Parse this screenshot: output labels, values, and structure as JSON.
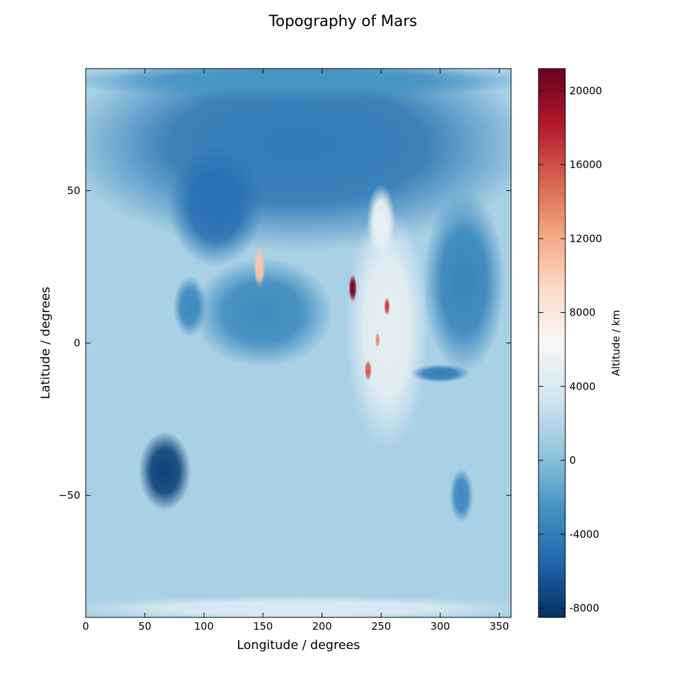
{
  "chart_data": {
    "type": "heatmap",
    "title": "Topography of Mars",
    "xlabel": "Longitude / degrees",
    "ylabel": "Latitude / degrees",
    "xlim": [
      0,
      360
    ],
    "ylim": [
      -90,
      90
    ],
    "x_ticks": [
      0,
      50,
      100,
      150,
      200,
      250,
      300,
      350
    ],
    "x_tick_labels": [
      "0",
      "50",
      "100",
      "150",
      "200",
      "250",
      "300",
      "350"
    ],
    "y_ticks": [
      -50,
      0,
      50
    ],
    "y_tick_labels": [
      "−50",
      "0",
      "50"
    ],
    "colormap": "RdBu_r",
    "colorbar": {
      "label": "Altitude / km",
      "vmin": -8500,
      "vmax": 21200,
      "ticks": [
        -8000,
        -4000,
        0,
        4000,
        8000,
        12000,
        16000,
        20000
      ],
      "tick_labels": [
        "-8000",
        "-4000",
        "0",
        "4000",
        "8000",
        "12000",
        "16000",
        "20000"
      ],
      "stops": [
        {
          "v": 0.0,
          "c": "#053061"
        },
        {
          "v": 0.1,
          "c": "#2166ac"
        },
        {
          "v": 0.2,
          "c": "#4393c3"
        },
        {
          "v": 0.3,
          "c": "#92c5de"
        },
        {
          "v": 0.4,
          "c": "#d1e5f0"
        },
        {
          "v": 0.5,
          "c": "#f7f7f7"
        },
        {
          "v": 0.6,
          "c": "#fddbc7"
        },
        {
          "v": 0.7,
          "c": "#f4a582"
        },
        {
          "v": 0.8,
          "c": "#d6604d"
        },
        {
          "v": 0.9,
          "c": "#b2182b"
        },
        {
          "v": 1.0,
          "c": "#67001f"
        }
      ]
    },
    "background_altitude": 1500,
    "features": [
      {
        "name": "northern-plains",
        "lon": 180,
        "lat": 65,
        "rlon": 200,
        "rlat": 35,
        "alt": -4200
      },
      {
        "name": "north-polar-cap",
        "lon": 180,
        "lat": 86,
        "rlon": 200,
        "rlat": 6,
        "alt": -2500
      },
      {
        "name": "utopia-basin",
        "lon": 110,
        "lat": 45,
        "rlon": 40,
        "rlat": 20,
        "alt": -4800
      },
      {
        "name": "elysium-plain",
        "lon": 150,
        "lat": 10,
        "rlon": 60,
        "rlat": 18,
        "alt": -3000
      },
      {
        "name": "isidis-basin",
        "lon": 88,
        "lat": 12,
        "rlon": 14,
        "rlat": 10,
        "alt": -3200
      },
      {
        "name": "chryse-plain",
        "lon": 320,
        "lat": 20,
        "rlon": 35,
        "rlat": 30,
        "alt": -3500
      },
      {
        "name": "tharsis-rise",
        "lon": 255,
        "lat": 5,
        "rlon": 35,
        "rlat": 40,
        "alt": 5000
      },
      {
        "name": "alba-patera",
        "lon": 250,
        "lat": 40,
        "rlon": 12,
        "rlat": 12,
        "alt": 5500
      },
      {
        "name": "olympus-mons",
        "lon": 226,
        "lat": 18,
        "rlon": 3.5,
        "rlat": 4.5,
        "alt": 20500
      },
      {
        "name": "ascraeus-mons",
        "lon": 255,
        "lat": 12,
        "rlon": 2.5,
        "rlat": 3,
        "alt": 16500
      },
      {
        "name": "pavonis-mons",
        "lon": 247,
        "lat": 1,
        "rlon": 2,
        "rlat": 2.5,
        "alt": 13500
      },
      {
        "name": "arsia-mons",
        "lon": 239,
        "lat": -9,
        "rlon": 3,
        "rlat": 3.5,
        "alt": 15500
      },
      {
        "name": "elysium-mons",
        "lon": 147,
        "lat": 25,
        "rlon": 5,
        "rlat": 7,
        "alt": 10500
      },
      {
        "name": "valles-marineris",
        "lon": 300,
        "lat": -10,
        "rlon": 25,
        "rlat": 3,
        "alt": -4000
      },
      {
        "name": "hellas-basin",
        "lon": 67,
        "lat": -42,
        "rlon": 22,
        "rlat": 13,
        "alt": -7500
      },
      {
        "name": "argyre-basin",
        "lon": 318,
        "lat": -50,
        "rlon": 10,
        "rlat": 9,
        "alt": -3200
      },
      {
        "name": "south-polar-cap",
        "lon": 180,
        "lat": -87,
        "rlon": 200,
        "rlat": 4,
        "alt": 4200
      }
    ]
  }
}
